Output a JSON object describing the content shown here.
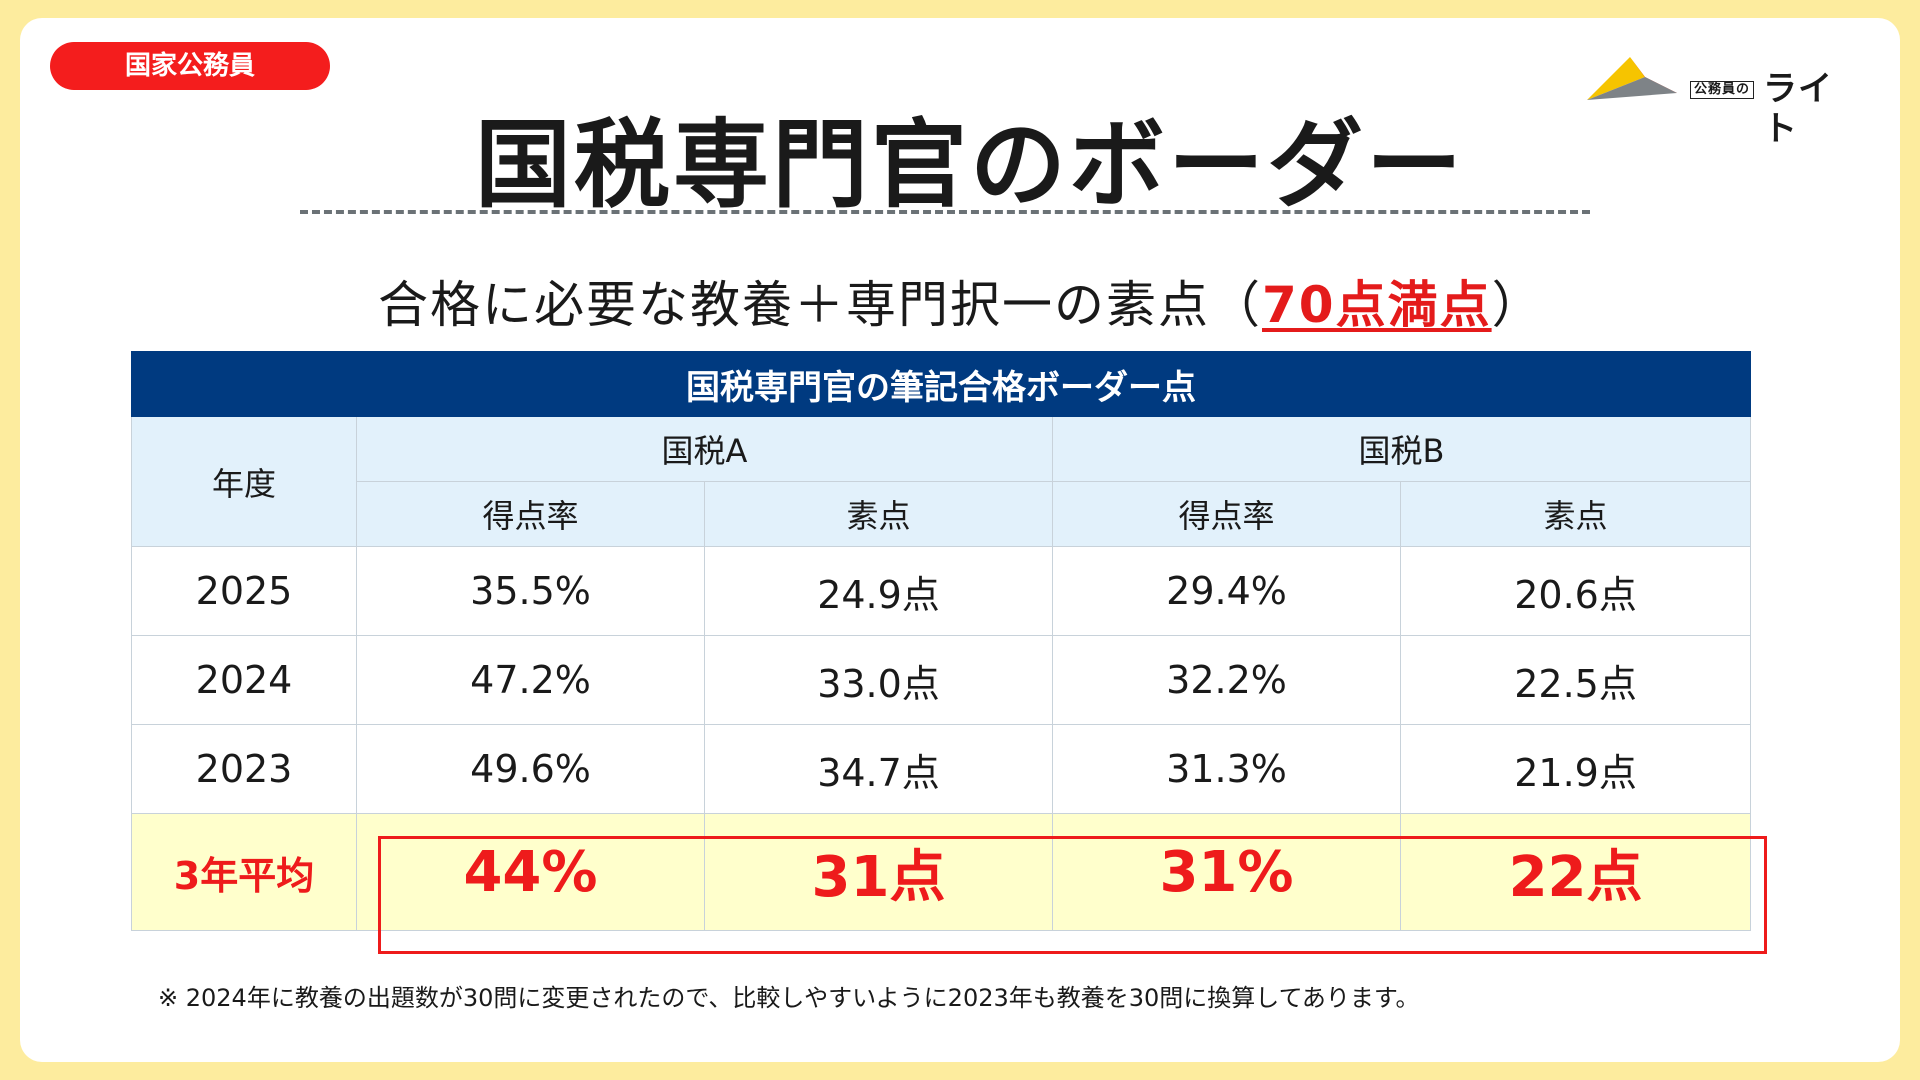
{
  "tag": "国家公務員",
  "logo": {
    "sub": "公務員の",
    "name": "ライト"
  },
  "title": "国税専門官のボーダー",
  "subtitle": {
    "main": "合格に必要な教養＋専門択一の素点（",
    "highlight": "70点満点",
    "end": "）"
  },
  "table": {
    "banner": "国税専門官の筆記合格ボーダー点",
    "year_header": "年度",
    "group_headers": [
      "国税A",
      "国税B"
    ],
    "sub_headers": [
      "得点率",
      "素点",
      "得点率",
      "素点"
    ],
    "rows": [
      {
        "year": "2025",
        "cells": [
          "35.5%",
          "24.9点",
          "29.4%",
          "20.6点"
        ]
      },
      {
        "year": "2024",
        "cells": [
          "47.2%",
          "33.0点",
          "32.2%",
          "22.5点"
        ]
      },
      {
        "year": "2023",
        "cells": [
          "49.6%",
          "34.7点",
          "31.3%",
          "21.9点"
        ]
      }
    ],
    "average": {
      "label": "3年平均",
      "cells": [
        "44%",
        "31点",
        "31%",
        "22点"
      ]
    }
  },
  "note": "※ 2024年に教養の出題数が30問に変更されたので、比較しやすいように2023年も教養を30問に換算してあります。",
  "colors": {
    "background": "#fdec9e",
    "accent_red": "#ee1b1b",
    "banner_blue": "#003a80",
    "header_blue": "#e2f1fb",
    "average_yellow": "#ffffcc"
  }
}
